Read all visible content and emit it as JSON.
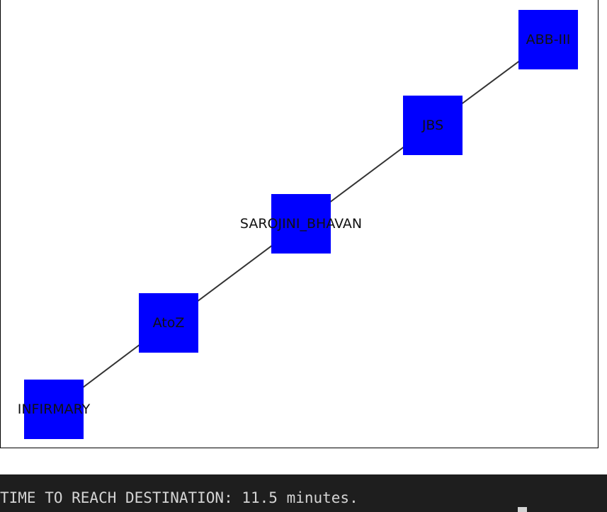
{
  "graph": {
    "nodes": [
      {
        "id": "INFIRMARY",
        "label": "INFIRMARY"
      },
      {
        "id": "AtoZ",
        "label": "AtoZ"
      },
      {
        "id": "SAROJINI_BHAVAN",
        "label": "SAROJINI_BHAVAN"
      },
      {
        "id": "JBS",
        "label": "JBS"
      },
      {
        "id": "ABB-III",
        "label": "ABB-III"
      }
    ],
    "edges": [
      [
        "INFIRMARY",
        "AtoZ"
      ],
      [
        "AtoZ",
        "SAROJINI_BHAVAN"
      ],
      [
        "SAROJINI_BHAVAN",
        "JBS"
      ],
      [
        "JBS",
        "ABB-III"
      ]
    ],
    "node_color": "#0000ff",
    "edge_color": "#333333"
  },
  "terminal": {
    "output_line": "TIME TO REACH DESTINATION: 11.5 minutes."
  }
}
